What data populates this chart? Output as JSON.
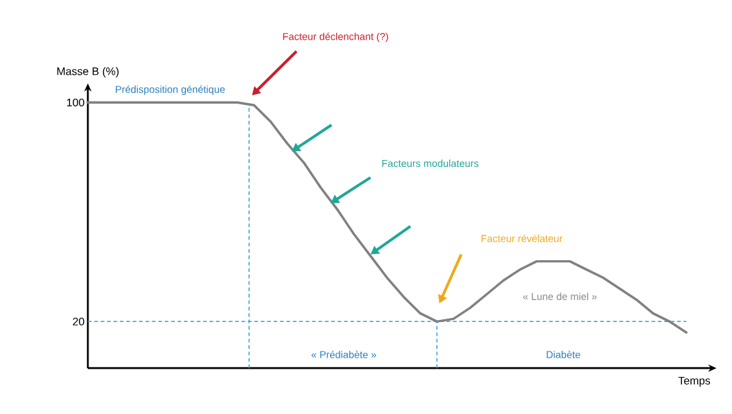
{
  "chart_data": {
    "type": "line",
    "ylabel": "Masse B (%)",
    "xlabel": "Temps",
    "categories": [
      null,
      null,
      null,
      null,
      null,
      null,
      null,
      null,
      null,
      null,
      null,
      null,
      null,
      null,
      null,
      null,
      null,
      null,
      null,
      null,
      null,
      null,
      null,
      null,
      null,
      null,
      null,
      null,
      null,
      null,
      null,
      null,
      null,
      null,
      null,
      null,
      null
    ],
    "series": [
      {
        "color": "#808080",
        "values": [
          100,
          100,
          100,
          100,
          100,
          100,
          100,
          100,
          100,
          100,
          99,
          93,
          85,
          78,
          69,
          61,
          52,
          44,
          36,
          29,
          23,
          20,
          21,
          25,
          30,
          35,
          39,
          42,
          42,
          42,
          39,
          36,
          32,
          28,
          23,
          20,
          16
        ]
      }
    ],
    "ylim": [
      3,
      106
    ],
    "yticks": [
      20,
      100
    ],
    "ref_lines": [
      {
        "axis": "y",
        "value": 20,
        "color": "#2a9fd6",
        "line_style": "dashed"
      }
    ],
    "annotations": [
      "Prédisposition génétique",
      "Facteur déclenchant (?)",
      "Facteurs modulateurs",
      "Facteur révélateur",
      "« Lune de miel »",
      "« Prédiabète »",
      "Diabète"
    ]
  }
}
